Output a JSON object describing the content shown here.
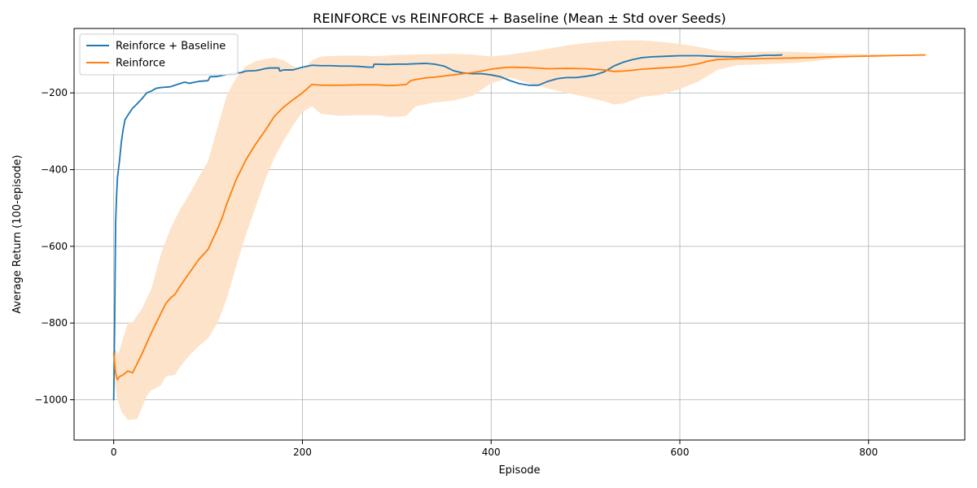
{
  "chart_data": {
    "type": "line",
    "title": "REINFORCE vs REINFORCE + Baseline (Mean ± Std over Seeds)",
    "xlabel": "Episode",
    "ylabel": "Average Return (100-episode)",
    "xlim": [
      -42,
      902
    ],
    "ylim": [
      -1105,
      -32
    ],
    "xticks": [
      0,
      200,
      400,
      600,
      800
    ],
    "yticks": [
      -1000,
      -800,
      -600,
      -400,
      -200
    ],
    "xtick_labels": [
      "0",
      "200",
      "400",
      "600",
      "800"
    ],
    "ytick_labels": [
      "−1000",
      "−800",
      "−600",
      "−400",
      "−200"
    ],
    "grid": true,
    "legend": {
      "placement": "top-left",
      "entries": [
        "Reinforce + Baseline",
        "Reinforce"
      ]
    },
    "series": [
      {
        "name": "Reinforce + Baseline",
        "color": "#1f77b4",
        "points": [
          [
            0,
            -1000
          ],
          [
            1,
            -800
          ],
          [
            2,
            -540
          ],
          [
            3,
            -470
          ],
          [
            4,
            -420
          ],
          [
            6,
            -380
          ],
          [
            8,
            -330
          ],
          [
            10,
            -295
          ],
          [
            12,
            -270
          ],
          [
            15,
            -258
          ],
          [
            20,
            -240
          ],
          [
            25,
            -228
          ],
          [
            30,
            -215
          ],
          [
            35,
            -200
          ],
          [
            40,
            -195
          ],
          [
            45,
            -188
          ],
          [
            50,
            -186
          ],
          [
            60,
            -184
          ],
          [
            65,
            -180
          ],
          [
            70,
            -176
          ],
          [
            75,
            -172
          ],
          [
            80,
            -175
          ],
          [
            90,
            -170
          ],
          [
            100,
            -168
          ],
          [
            102,
            -158
          ],
          [
            110,
            -157
          ],
          [
            120,
            -152
          ],
          [
            125,
            -150
          ],
          [
            135,
            -147
          ],
          [
            140,
            -143
          ],
          [
            150,
            -142
          ],
          [
            155,
            -140
          ],
          [
            160,
            -137
          ],
          [
            165,
            -135
          ],
          [
            175,
            -135
          ],
          [
            176,
            -143
          ],
          [
            180,
            -140
          ],
          [
            190,
            -140
          ],
          [
            200,
            -133
          ],
          [
            210,
            -128
          ],
          [
            220,
            -129
          ],
          [
            230,
            -129
          ],
          [
            240,
            -130
          ],
          [
            250,
            -130
          ],
          [
            260,
            -131
          ],
          [
            270,
            -133
          ],
          [
            275,
            -133
          ],
          [
            276,
            -125
          ],
          [
            290,
            -126
          ],
          [
            300,
            -125
          ],
          [
            310,
            -125
          ],
          [
            320,
            -124
          ],
          [
            330,
            -123
          ],
          [
            340,
            -125
          ],
          [
            350,
            -130
          ],
          [
            360,
            -142
          ],
          [
            370,
            -148
          ],
          [
            380,
            -150
          ],
          [
            390,
            -150
          ],
          [
            400,
            -153
          ],
          [
            410,
            -158
          ],
          [
            420,
            -168
          ],
          [
            430,
            -176
          ],
          [
            440,
            -180
          ],
          [
            450,
            -180
          ],
          [
            460,
            -170
          ],
          [
            470,
            -163
          ],
          [
            480,
            -160
          ],
          [
            490,
            -160
          ],
          [
            500,
            -157
          ],
          [
            510,
            -153
          ],
          [
            520,
            -145
          ],
          [
            530,
            -130
          ],
          [
            540,
            -120
          ],
          [
            550,
            -113
          ],
          [
            560,
            -108
          ],
          [
            570,
            -106
          ],
          [
            580,
            -105
          ],
          [
            590,
            -104
          ],
          [
            600,
            -103
          ],
          [
            610,
            -103
          ],
          [
            620,
            -103
          ],
          [
            630,
            -104
          ],
          [
            640,
            -105
          ],
          [
            660,
            -106
          ],
          [
            680,
            -104
          ],
          [
            690,
            -102
          ],
          [
            700,
            -102
          ],
          [
            708,
            -101
          ]
        ]
      },
      {
        "name": "Reinforce",
        "color": "#ff7f0e",
        "points": [
          [
            0,
            -880
          ],
          [
            1,
            -905
          ],
          [
            2,
            -930
          ],
          [
            4,
            -948
          ],
          [
            6,
            -940
          ],
          [
            10,
            -935
          ],
          [
            15,
            -925
          ],
          [
            20,
            -930
          ],
          [
            25,
            -905
          ],
          [
            30,
            -880
          ],
          [
            40,
            -825
          ],
          [
            50,
            -775
          ],
          [
            55,
            -750
          ],
          [
            60,
            -735
          ],
          [
            65,
            -725
          ],
          [
            70,
            -705
          ],
          [
            80,
            -670
          ],
          [
            90,
            -635
          ],
          [
            100,
            -608
          ],
          [
            110,
            -555
          ],
          [
            115,
            -525
          ],
          [
            120,
            -488
          ],
          [
            130,
            -425
          ],
          [
            140,
            -375
          ],
          [
            150,
            -335
          ],
          [
            160,
            -300
          ],
          [
            170,
            -262
          ],
          [
            180,
            -237
          ],
          [
            190,
            -218
          ],
          [
            200,
            -200
          ],
          [
            210,
            -178
          ],
          [
            220,
            -180
          ],
          [
            240,
            -180
          ],
          [
            260,
            -179
          ],
          [
            280,
            -179
          ],
          [
            290,
            -181
          ],
          [
            300,
            -180
          ],
          [
            310,
            -178
          ],
          [
            315,
            -168
          ],
          [
            320,
            -165
          ],
          [
            330,
            -161
          ],
          [
            340,
            -159
          ],
          [
            350,
            -156
          ],
          [
            360,
            -153
          ],
          [
            370,
            -150
          ],
          [
            380,
            -147
          ],
          [
            390,
            -143
          ],
          [
            400,
            -138
          ],
          [
            410,
            -135
          ],
          [
            420,
            -133
          ],
          [
            440,
            -134
          ],
          [
            460,
            -137
          ],
          [
            480,
            -136
          ],
          [
            500,
            -137
          ],
          [
            520,
            -140
          ],
          [
            530,
            -144
          ],
          [
            540,
            -143
          ],
          [
            550,
            -141
          ],
          [
            560,
            -138
          ],
          [
            580,
            -135
          ],
          [
            600,
            -132
          ],
          [
            620,
            -124
          ],
          [
            630,
            -117
          ],
          [
            640,
            -113
          ],
          [
            660,
            -111
          ],
          [
            680,
            -111
          ],
          [
            700,
            -110
          ],
          [
            720,
            -109
          ],
          [
            740,
            -108
          ],
          [
            760,
            -106
          ],
          [
            780,
            -105
          ],
          [
            800,
            -104
          ],
          [
            820,
            -103
          ],
          [
            840,
            -102
          ],
          [
            860,
            -101
          ]
        ],
        "band_upper": [
          [
            0,
            -880
          ],
          [
            2,
            -870
          ],
          [
            5,
            -880
          ],
          [
            10,
            -840
          ],
          [
            15,
            -800
          ],
          [
            20,
            -798
          ],
          [
            30,
            -762
          ],
          [
            40,
            -710
          ],
          [
            50,
            -620
          ],
          [
            60,
            -555
          ],
          [
            70,
            -505
          ],
          [
            80,
            -465
          ],
          [
            90,
            -420
          ],
          [
            100,
            -378
          ],
          [
            110,
            -290
          ],
          [
            120,
            -205
          ],
          [
            130,
            -160
          ],
          [
            140,
            -130
          ],
          [
            150,
            -118
          ],
          [
            160,
            -112
          ],
          [
            170,
            -108
          ],
          [
            180,
            -115
          ],
          [
            190,
            -130
          ],
          [
            200,
            -140
          ],
          [
            210,
            -115
          ],
          [
            220,
            -105
          ],
          [
            240,
            -103
          ],
          [
            260,
            -103
          ],
          [
            280,
            -104
          ],
          [
            300,
            -101
          ],
          [
            320,
            -100
          ],
          [
            340,
            -99
          ],
          [
            360,
            -98
          ],
          [
            380,
            -100
          ],
          [
            400,
            -105
          ],
          [
            420,
            -100
          ],
          [
            440,
            -93
          ],
          [
            460,
            -85
          ],
          [
            480,
            -76
          ],
          [
            500,
            -70
          ],
          [
            520,
            -66
          ],
          [
            540,
            -63
          ],
          [
            560,
            -63
          ],
          [
            580,
            -67
          ],
          [
            600,
            -72
          ],
          [
            620,
            -80
          ],
          [
            640,
            -90
          ],
          [
            660,
            -93
          ],
          [
            680,
            -93
          ],
          [
            700,
            -92
          ],
          [
            720,
            -93
          ],
          [
            740,
            -95
          ],
          [
            760,
            -97
          ],
          [
            780,
            -98
          ],
          [
            800,
            -99
          ],
          [
            820,
            -100
          ],
          [
            840,
            -100
          ],
          [
            860,
            -101
          ]
        ],
        "band_lower": [
          [
            0,
            -920
          ],
          [
            3,
            -990
          ],
          [
            8,
            -1030
          ],
          [
            15,
            -1053
          ],
          [
            25,
            -1050
          ],
          [
            30,
            -1020
          ],
          [
            35,
            -990
          ],
          [
            40,
            -975
          ],
          [
            50,
            -962
          ],
          [
            55,
            -940
          ],
          [
            65,
            -935
          ],
          [
            70,
            -915
          ],
          [
            80,
            -885
          ],
          [
            90,
            -860
          ],
          [
            100,
            -840
          ],
          [
            110,
            -800
          ],
          [
            120,
            -735
          ],
          [
            130,
            -650
          ],
          [
            140,
            -570
          ],
          [
            150,
            -500
          ],
          [
            160,
            -430
          ],
          [
            170,
            -370
          ],
          [
            180,
            -325
          ],
          [
            190,
            -285
          ],
          [
            200,
            -250
          ],
          [
            210,
            -235
          ],
          [
            220,
            -255
          ],
          [
            240,
            -260
          ],
          [
            260,
            -258
          ],
          [
            280,
            -258
          ],
          [
            290,
            -262
          ],
          [
            300,
            -262
          ],
          [
            310,
            -260
          ],
          [
            320,
            -235
          ],
          [
            340,
            -225
          ],
          [
            360,
            -220
          ],
          [
            380,
            -208
          ],
          [
            400,
            -175
          ],
          [
            420,
            -160
          ],
          [
            440,
            -175
          ],
          [
            460,
            -188
          ],
          [
            480,
            -200
          ],
          [
            500,
            -210
          ],
          [
            520,
            -222
          ],
          [
            530,
            -230
          ],
          [
            540,
            -228
          ],
          [
            560,
            -210
          ],
          [
            580,
            -205
          ],
          [
            600,
            -190
          ],
          [
            620,
            -170
          ],
          [
            640,
            -140
          ],
          [
            660,
            -128
          ],
          [
            680,
            -126
          ],
          [
            700,
            -124
          ],
          [
            720,
            -122
          ],
          [
            740,
            -118
          ],
          [
            760,
            -112
          ],
          [
            780,
            -106
          ],
          [
            800,
            -104
          ],
          [
            820,
            -103
          ],
          [
            840,
            -102
          ],
          [
            860,
            -101
          ]
        ],
        "band_color": "#fde2c6"
      }
    ]
  }
}
